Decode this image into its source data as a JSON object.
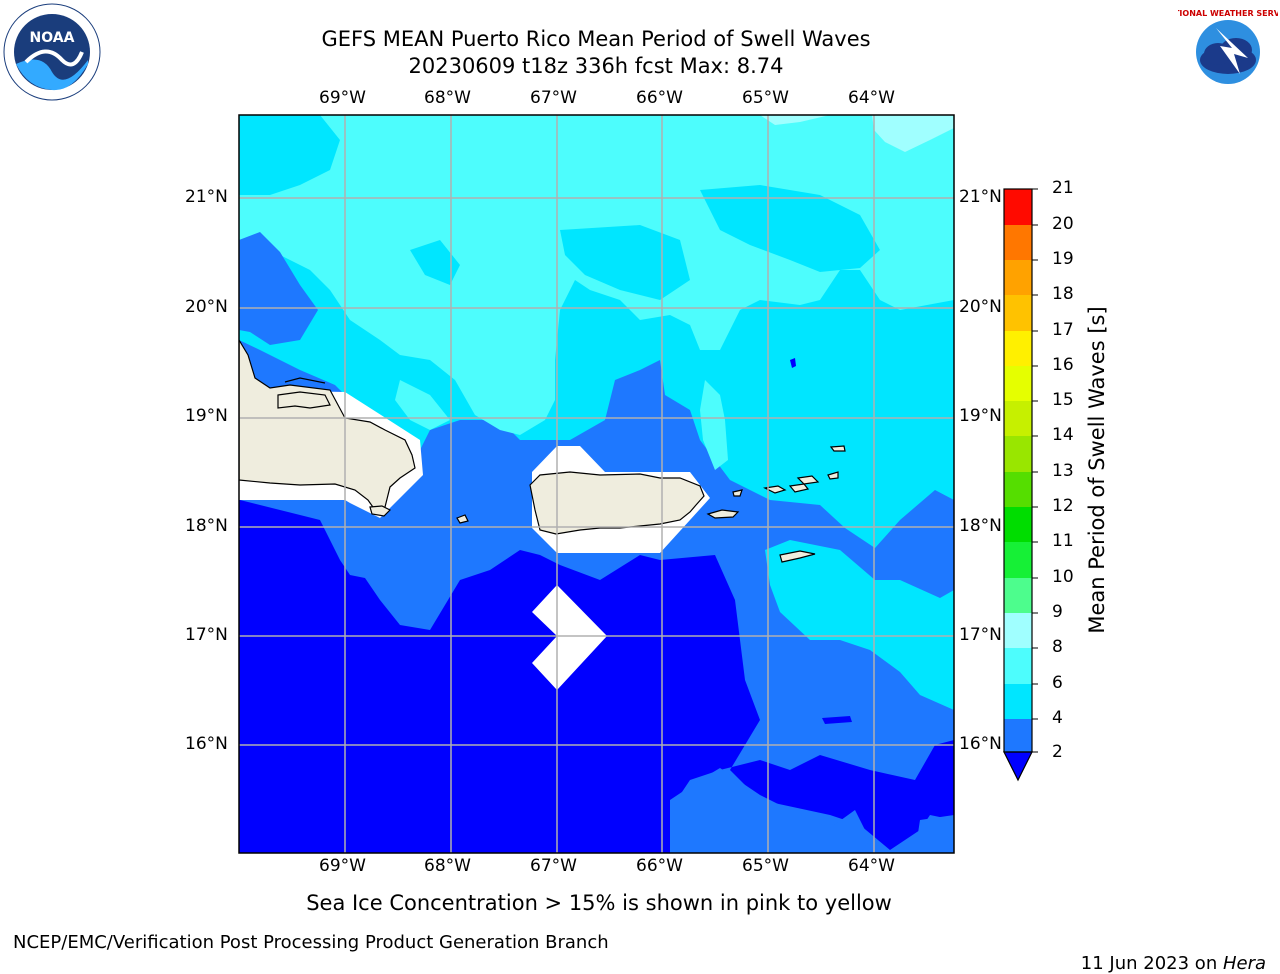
{
  "header": {
    "title_line1": "GEFS MEAN Puerto Rico Mean Period of Swell Waves",
    "title_line2": "20230609 t18z 336h fcst   Max: 8.74"
  },
  "logos": {
    "left": {
      "name": "noaa-logo",
      "text": "NOAA"
    },
    "right": {
      "name": "nws-logo",
      "text": "NATIONAL WEATHER SERVICE"
    }
  },
  "map": {
    "lon_labels": [
      "69°W",
      "68°W",
      "67°W",
      "66°W",
      "65°W",
      "64°W"
    ],
    "lat_labels": [
      "21°N",
      "20°N",
      "19°N",
      "18°N",
      "17°N",
      "16°N"
    ],
    "lon_range": [
      -70,
      -63.25
    ],
    "lat_range": [
      15,
      21.75
    ]
  },
  "colorbar": {
    "label": "Mean Period of Swell Waves [s]",
    "ticks": [
      "2",
      "4",
      "6",
      "8",
      "9",
      "10",
      "11",
      "12",
      "13",
      "14",
      "15",
      "16",
      "17",
      "18",
      "19",
      "20",
      "21"
    ],
    "colors": [
      "#0000ff",
      "#1e78ff",
      "#00e6ff",
      "#4dfdfd",
      "#a0ffff",
      "#4dfd8d",
      "#16f036",
      "#00dd00",
      "#55de00",
      "#99e600",
      "#c6f000",
      "#e5ff00",
      "#fff000",
      "#ffc200",
      "#ffa200",
      "#ff7700",
      "#ff4f00",
      "#ff0a00"
    ]
  },
  "colors": {
    "deep_blue": "#0000ff",
    "mid_blue": "#1e78ff",
    "cyan": "#00e6ff",
    "light_cyan": "#4dfdfd",
    "pale_cyan": "#a0ffff",
    "land": "#efedde",
    "grid": "#b0b0b0"
  },
  "footer": {
    "note": "Sea Ice Concentration > 15% is shown in pink to yellow",
    "branch": "NCEP/EMC/Verification Post Processing Product Generation Branch",
    "date": "11 Jun 2023 on ",
    "machine": "Hera"
  }
}
